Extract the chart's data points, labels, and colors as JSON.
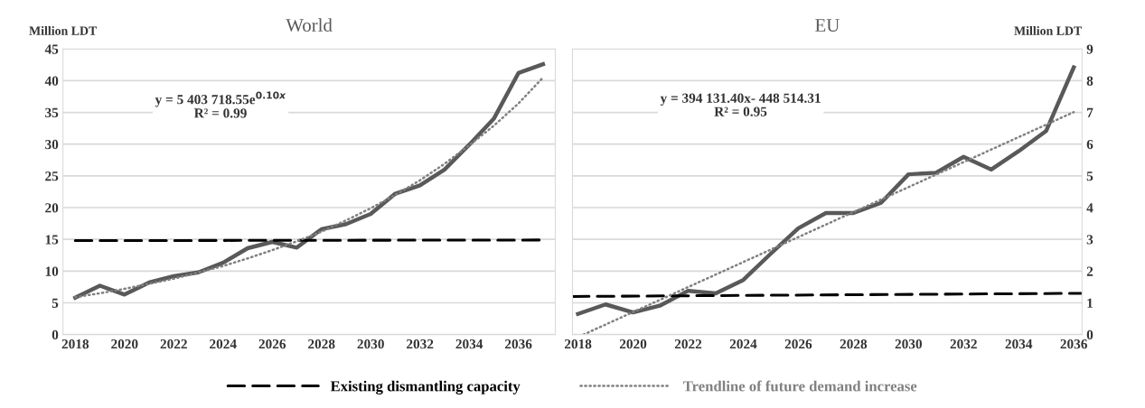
{
  "chart_data": [
    {
      "type": "line",
      "title": "World",
      "ylabel": "Million LDT",
      "xlim": [
        2017.5,
        2037.5
      ],
      "xticks": [
        2018,
        2020,
        2022,
        2024,
        2026,
        2028,
        2030,
        2032,
        2034,
        2036
      ],
      "ylim": [
        0,
        45
      ],
      "yticks": [
        0,
        5,
        10,
        15,
        20,
        25,
        30,
        35,
        40,
        45
      ],
      "grid": "y",
      "legend": "bottom",
      "annotations": [
        "y = 5 403 718.55e$^{0.10x}$\nR² = 0.99"
      ],
      "x": [
        2018,
        2019,
        2020,
        2021,
        2022,
        2023,
        2024,
        2025,
        2026,
        2027,
        2028,
        2029,
        2030,
        2031,
        2032,
        2033,
        2034,
        2035,
        2036,
        2037
      ],
      "series": [
        {
          "color": "#595959",
          "line_style": "solid",
          "values": [
            5.8,
            7.7,
            6.3,
            8.2,
            9.2,
            9.8,
            11.3,
            13.6,
            14.6,
            13.7,
            16.6,
            17.4,
            19.0,
            22.2,
            23.5,
            26.0,
            29.9,
            34.0,
            41.2,
            42.6
          ]
        },
        {
          "name": "Existing dismantling capacity",
          "color": "#000000",
          "line_style": "dashed",
          "x": [
            2018,
            2037
          ],
          "values": [
            14.8,
            14.9
          ]
        },
        {
          "name": "Trendline of future demand increase",
          "color": "#808080",
          "line_style": "dotted",
          "values": [
            5.9,
            6.5,
            7.2,
            8.0,
            8.8,
            9.8,
            10.8,
            12.0,
            13.3,
            14.7,
            16.2,
            18.0,
            19.9,
            22.0,
            24.3,
            26.9,
            29.8,
            32.9,
            36.4,
            40.5
          ]
        }
      ]
    },
    {
      "type": "line",
      "title": "EU",
      "ylabel": "Million LDT",
      "xlim": [
        2017.8,
        2036.3
      ],
      "xticks": [
        2018,
        2020,
        2022,
        2024,
        2026,
        2028,
        2030,
        2032,
        2034,
        2036
      ],
      "ylim": [
        0,
        9
      ],
      "yticks": [
        0,
        1,
        2,
        3,
        4,
        5,
        6,
        7,
        8,
        9
      ],
      "grid": "y",
      "annotations": [
        "y = 394 131.40x- 448 514.31\nR² = 0.95"
      ],
      "x": [
        2018,
        2019,
        2020,
        2021,
        2022,
        2023,
        2024,
        2025,
        2026,
        2027,
        2028,
        2029,
        2030,
        2031,
        2032,
        2033,
        2034,
        2035,
        2036
      ],
      "series": [
        {
          "color": "#595959",
          "line_style": "solid",
          "values": [
            0.65,
            0.95,
            0.7,
            0.92,
            1.38,
            1.3,
            1.72,
            2.55,
            3.35,
            3.83,
            3.83,
            4.15,
            5.05,
            5.1,
            5.6,
            5.2,
            5.78,
            6.42,
            8.42
          ]
        },
        {
          "color": "#000000",
          "line_style": "dashed",
          "x": [
            2017.8,
            2036.3
          ],
          "values": [
            1.2,
            1.3
          ]
        },
        {
          "color": "#808080",
          "line_style": "dotted",
          "x": [
            2018.2,
            2036
          ],
          "values": [
            0.0,
            7.01
          ]
        }
      ]
    }
  ]
}
